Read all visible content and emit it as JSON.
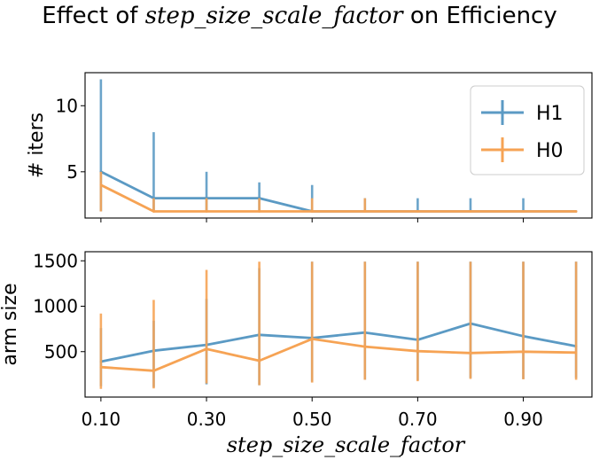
{
  "figure": {
    "title_prefix": "Effect of ",
    "title_param": "step_size_scale_factor",
    "title_suffix": " on Efficiency",
    "xlabel": "step_size_scale_factor",
    "colors": {
      "H1": "#5b9ac4",
      "H0": "#f6a354"
    }
  },
  "chart_data": [
    {
      "type": "line",
      "name": "iters-panel",
      "ylabel": "# iters",
      "ylim": [
        1.5,
        12.5
      ],
      "yticks": [
        5,
        10
      ],
      "xlim": [
        0.07,
        1.03
      ],
      "x": [
        0.1,
        0.2,
        0.3,
        0.4,
        0.5,
        0.6,
        0.7,
        0.8,
        0.9,
        1.0
      ],
      "series": [
        {
          "name": "H1",
          "values": [
            5,
            3,
            3,
            3,
            2,
            2,
            2,
            2,
            2,
            2
          ],
          "err_low": [
            2,
            2,
            2,
            2,
            2,
            2,
            2,
            2,
            2,
            2
          ],
          "err_high": [
            12,
            8,
            5,
            4.2,
            4,
            3,
            3,
            3,
            3,
            2
          ]
        },
        {
          "name": "H0",
          "values": [
            4,
            2,
            2,
            2,
            2,
            2,
            2,
            2,
            2,
            2
          ],
          "err_low": [
            2,
            2,
            2,
            2,
            2,
            2,
            2,
            2,
            2,
            2
          ],
          "err_high": [
            5,
            3,
            3,
            3,
            3,
            3,
            2,
            2,
            2,
            2
          ]
        }
      ],
      "legend": {
        "entries": [
          "H1",
          "H0"
        ],
        "placement": "top-right"
      }
    },
    {
      "type": "line",
      "name": "arm-size-panel",
      "ylabel": "arm size",
      "ylim": [
        0,
        1600
      ],
      "yticks": [
        500,
        1000,
        1500
      ],
      "xlim": [
        0.07,
        1.03
      ],
      "xticks": [
        0.1,
        0.3,
        0.5,
        0.7,
        0.9
      ],
      "xtick_labels": [
        "0.10",
        "0.30",
        "0.50",
        "0.70",
        "0.90"
      ],
      "x": [
        0.1,
        0.2,
        0.3,
        0.4,
        0.5,
        0.6,
        0.7,
        0.8,
        0.9,
        1.0
      ],
      "series": [
        {
          "name": "H1",
          "values": [
            390,
            510,
            575,
            685,
            650,
            710,
            630,
            810,
            670,
            560
          ],
          "err_low": [
            120,
            110,
            140,
            130,
            170,
            190,
            185,
            210,
            200,
            210
          ],
          "err_high": [
            760,
            840,
            1080,
            1420,
            1490,
            1490,
            1490,
            1490,
            1490,
            1490
          ]
        },
        {
          "name": "H0",
          "values": [
            330,
            290,
            530,
            400,
            640,
            555,
            505,
            485,
            500,
            490
          ],
          "err_low": [
            90,
            95,
            150,
            130,
            160,
            190,
            175,
            200,
            195,
            190
          ],
          "err_high": [
            920,
            1070,
            1400,
            1490,
            1490,
            1490,
            1490,
            1490,
            1490,
            1490
          ]
        }
      ]
    }
  ]
}
